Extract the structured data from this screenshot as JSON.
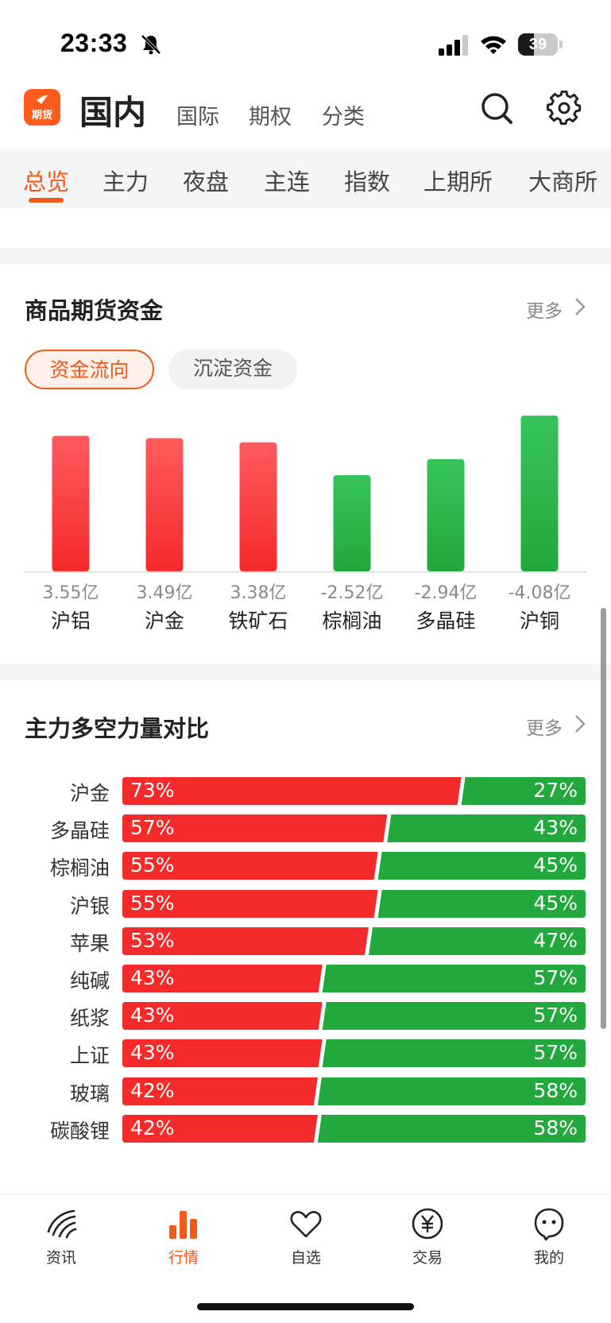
{
  "status_bar": {
    "time": "23:33",
    "battery": "39",
    "battery_level": 0.39
  },
  "header": {
    "logo_text": "期货",
    "title": "国内",
    "subtabs": [
      {
        "label": "国际"
      },
      {
        "label": "期权"
      },
      {
        "label": "分类"
      }
    ]
  },
  "category_tabs": {
    "items": [
      {
        "label": "总览",
        "active": true
      },
      {
        "label": "主力"
      },
      {
        "label": "夜盘"
      },
      {
        "label": "主连"
      },
      {
        "label": "指数"
      },
      {
        "label": "上期所"
      },
      {
        "label": "大商所"
      }
    ]
  },
  "fund_section": {
    "title": "商品期货资金",
    "more": "更多",
    "pills": [
      {
        "label": "资金流向",
        "active": true
      },
      {
        "label": "沉淀资金"
      }
    ],
    "colors": {
      "inflow": "#f52a2a",
      "outflow": "#22a83c"
    }
  },
  "chart_data": {
    "type": "bar",
    "categories": [
      "沪铝",
      "沪金",
      "铁矿石",
      "棕榈油",
      "多晶硅",
      "沪铜"
    ],
    "value_labels": [
      "3.55亿",
      "3.49亿",
      "3.38亿",
      "-2.52亿",
      "-2.94亿",
      "-4.08亿"
    ],
    "values": [
      3.55,
      3.49,
      3.38,
      -2.52,
      -2.94,
      -4.08
    ],
    "unit": "亿",
    "bar_height": "absolute value; red = positive, green = negative"
  },
  "ratio_section": {
    "title": "主力多空力量对比",
    "more": "更多",
    "colors": {
      "long": "#f52a2a",
      "short": "#22a83c"
    },
    "rows": [
      {
        "name": "沪金",
        "long": "73%",
        "short": "27%",
        "long_value": 73
      },
      {
        "name": "多晶硅",
        "long": "57%",
        "short": "43%",
        "long_value": 57
      },
      {
        "name": "棕榈油",
        "long": "55%",
        "short": "45%",
        "long_value": 55
      },
      {
        "name": "沪银",
        "long": "55%",
        "short": "45%",
        "long_value": 55
      },
      {
        "name": "苹果",
        "long": "53%",
        "short": "47%",
        "long_value": 53
      },
      {
        "name": "纯碱",
        "long": "43%",
        "short": "57%",
        "long_value": 43
      },
      {
        "name": "纸浆",
        "long": "43%",
        "short": "57%",
        "long_value": 43
      },
      {
        "name": "上证",
        "long": "43%",
        "short": "57%",
        "long_value": 43
      },
      {
        "name": "玻璃",
        "long": "42%",
        "short": "58%",
        "long_value": 42
      },
      {
        "name": "碳酸锂",
        "long": "42%",
        "short": "58%",
        "long_value": 42
      }
    ]
  },
  "bottom_nav": {
    "items": [
      {
        "label": "资讯",
        "icon": "news-icon"
      },
      {
        "label": "行情",
        "icon": "market-chart-icon",
        "active": true
      },
      {
        "label": "自选",
        "icon": "heart-icon"
      },
      {
        "label": "交易",
        "icon": "yuan-icon"
      },
      {
        "label": "我的",
        "icon": "profile-icon"
      }
    ]
  }
}
